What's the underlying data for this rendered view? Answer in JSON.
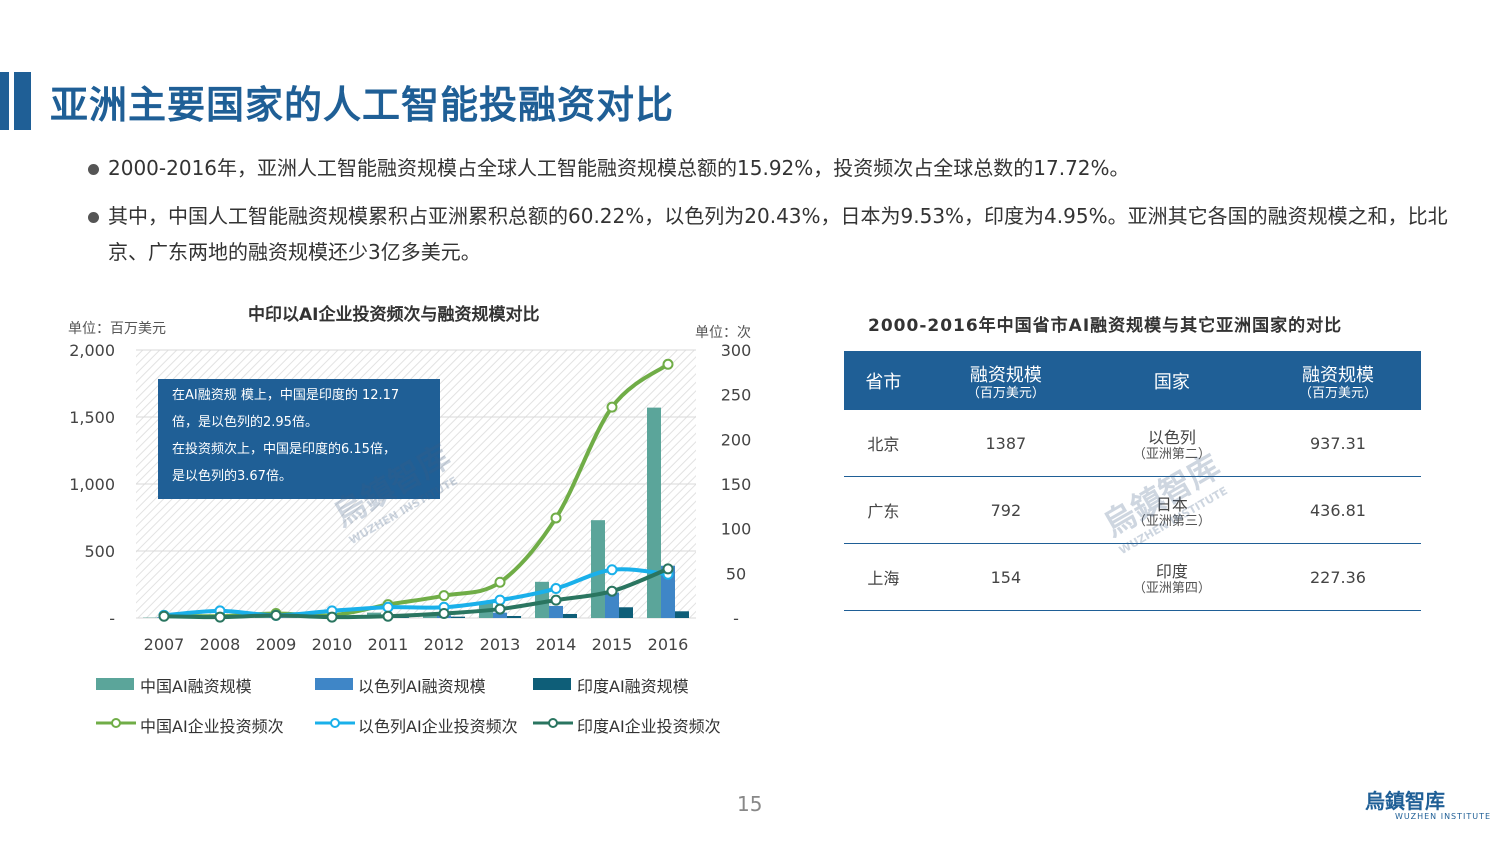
{
  "page": {
    "title": "亚洲主要国家的人工智能投融资对比",
    "bullets": [
      "2000-2016年，亚洲人工智能融资规模占全球人工智能融资规模总额的15.92%，投资频次占全球总数的17.72%。",
      "其中，中国人工智能融资规模累积占亚洲累积总额的60.22%，以色列为20.43%，日本为9.53%，印度为4.95%。亚洲其它各国的融资规模之和，比北京、广东两地的融资规模还少3亿多美元。"
    ],
    "page_number": "15",
    "logo_text": "烏鎮智库",
    "logo_sub": "WUZHEN INSTITUTE",
    "watermark_text": "烏鎮智库",
    "watermark_sub": "WUZHEN INSTITUTE"
  },
  "chart": {
    "unit_left": "单位：百万美元",
    "unit_right": "单位：次",
    "annotation_lines": [
      "在AI融资规 模上，中国是印度的 12.17",
      "倍，是以色列的2.95倍。",
      "在投资频次上，中国是印度的6.15倍，",
      "是以色列的3.67倍。"
    ],
    "left_tick_labels": [
      "2,000",
      "1,500",
      "1,000",
      "500",
      "-"
    ],
    "right_tick_labels": [
      "300",
      "250",
      "200",
      "150",
      "100",
      "50",
      "-"
    ]
  },
  "chart_data": {
    "type": "bar",
    "title": "中印以AI企业投资频次与融资规模对比",
    "categories": [
      "2007",
      "2008",
      "2009",
      "2010",
      "2011",
      "2012",
      "2013",
      "2014",
      "2015",
      "2016"
    ],
    "ylim": [
      0,
      2000
    ],
    "y2lim": [
      0,
      300
    ],
    "series": [
      {
        "name": "中国AI融资规模",
        "kind": "bar",
        "axis": "left",
        "color": "#5ba59a",
        "values": [
          3,
          2,
          30,
          5,
          40,
          35,
          120,
          270,
          730,
          1570
        ]
      },
      {
        "name": "以色列AI融资规模",
        "kind": "bar",
        "axis": "left",
        "color": "#3f86c7",
        "values": [
          5,
          8,
          5,
          10,
          15,
          20,
          40,
          90,
          190,
          390
        ]
      },
      {
        "name": "印度AI融资规模",
        "kind": "bar",
        "axis": "left",
        "color": "#0e5e78",
        "values": [
          1,
          1,
          2,
          3,
          5,
          10,
          15,
          30,
          80,
          50
        ]
      },
      {
        "name": "中国AI企业投资频次",
        "kind": "line",
        "axis": "right",
        "color": "#70ad47",
        "values": [
          3,
          2,
          5,
          3,
          15,
          25,
          40,
          112,
          236,
          284
        ]
      },
      {
        "name": "以色列AI企业投资频次",
        "kind": "line",
        "axis": "right",
        "color": "#1ab0ea",
        "values": [
          3,
          8,
          3,
          8,
          12,
          12,
          20,
          33,
          54,
          49
        ]
      },
      {
        "name": "印度AI企业投资频次",
        "kind": "line",
        "axis": "right",
        "color": "#2a7560",
        "values": [
          2,
          1,
          3,
          1,
          2,
          5,
          10,
          20,
          30,
          55
        ]
      }
    ]
  },
  "table": {
    "title": "2000-2016年中国省市AI融资规模与其它亚洲国家的对比",
    "headers": [
      {
        "main": "省市",
        "sub": ""
      },
      {
        "main": "融资规模",
        "sub": "（百万美元）"
      },
      {
        "main": "国家",
        "sub": ""
      },
      {
        "main": "融资规模",
        "sub": "（百万美元）"
      }
    ],
    "rows": [
      {
        "province": "北京",
        "amount": "1387",
        "country": "以色列",
        "country_sub": "（亚洲第二）",
        "country_amount": "937.31"
      },
      {
        "province": "广东",
        "amount": "792",
        "country": "日本",
        "country_sub": "（亚洲第三）",
        "country_amount": "436.81"
      },
      {
        "province": "上海",
        "amount": "154",
        "country": "印度",
        "country_sub": "（亚洲第四）",
        "country_amount": "227.36"
      }
    ]
  }
}
